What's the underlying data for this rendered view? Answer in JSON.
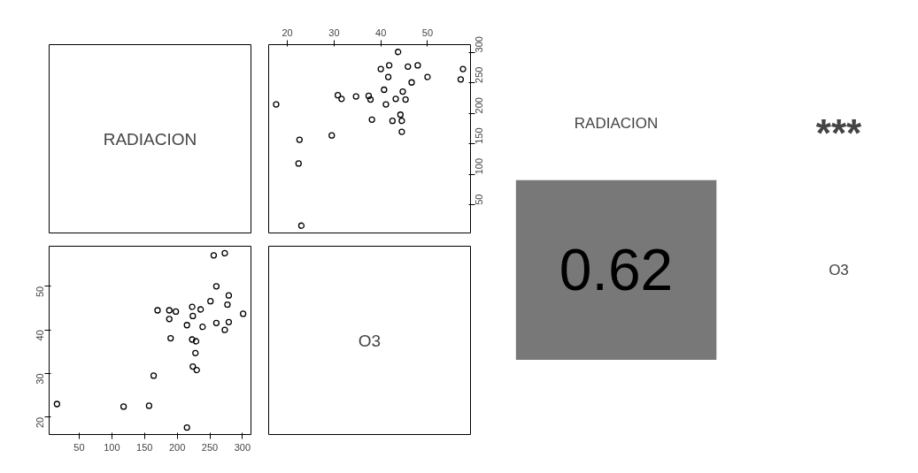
{
  "chart_data": [
    {
      "type": "other",
      "annotations": [
        "RADIACION"
      ]
    },
    {
      "type": "scatter",
      "marker": "circle",
      "grid": false,
      "xlim": [
        16,
        59.2
      ],
      "ylim": [
        4,
        313
      ],
      "xticks": [
        20,
        30,
        40,
        50
      ],
      "yticks": [
        50,
        100,
        150,
        200,
        250,
        300
      ],
      "color": "#000000",
      "x": [
        23.0,
        22.4,
        22.6,
        29.5,
        44.5,
        44.5,
        44.2,
        42.5,
        38.1,
        17.6,
        41.1,
        45.3,
        43.2,
        37.8,
        37.4,
        34.7,
        31.6,
        30.8,
        44.7,
        40.7,
        46.6,
        57.1,
        50.0,
        41.6,
        57.6,
        40.0,
        45.8,
        47.9,
        41.8,
        43.7
      ],
      "values": [
        16,
        118,
        157,
        164,
        170,
        188,
        198,
        188,
        190,
        215,
        215,
        223,
        224,
        223,
        229,
        228,
        224,
        230,
        236,
        239,
        251,
        256,
        260,
        260,
        273,
        273,
        277,
        279,
        279,
        301
      ]
    },
    {
      "type": "scatter",
      "marker": "circle",
      "grid": false,
      "xlim": [
        4,
        313
      ],
      "ylim": [
        16,
        59.2
      ],
      "xticks": [
        50,
        100,
        150,
        200,
        250,
        300
      ],
      "yticks": [
        20,
        30,
        40,
        50
      ],
      "color": "#000000",
      "x": [
        16,
        118,
        157,
        164,
        170,
        188,
        198,
        188,
        190,
        215,
        215,
        223,
        224,
        223,
        229,
        228,
        224,
        230,
        236,
        239,
        251,
        256,
        260,
        260,
        273,
        273,
        277,
        279,
        279,
        301
      ],
      "values": [
        23.0,
        22.4,
        22.6,
        29.5,
        44.5,
        44.5,
        44.2,
        42.5,
        38.1,
        17.6,
        41.1,
        45.3,
        43.2,
        37.8,
        37.4,
        34.7,
        31.6,
        30.8,
        44.7,
        40.7,
        46.6,
        57.1,
        50.0,
        41.6,
        57.6,
        40.0,
        45.8,
        47.9,
        41.8,
        43.7
      ]
    },
    {
      "type": "other",
      "annotations": [
        "O3"
      ]
    },
    {
      "type": "other",
      "values": [
        0.62
      ],
      "data_labels": true,
      "color": "#787878",
      "annotations": [
        "RADIACION",
        "***",
        "O3"
      ]
    }
  ]
}
